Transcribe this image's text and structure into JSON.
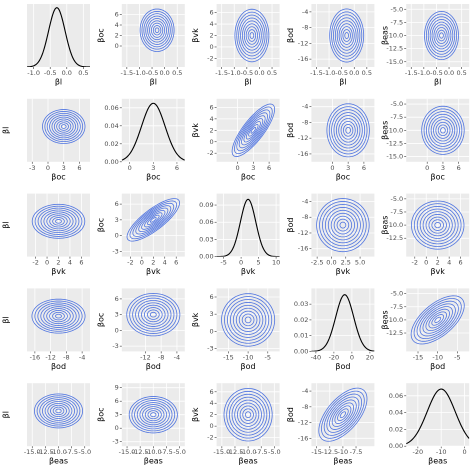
{
  "chart_data": [
    {
      "type": "density",
      "xlabel": "βl",
      "xlim": [
        -1.2,
        0.7
      ],
      "ylim": [
        0,
        1.7
      ],
      "xticks": [
        {
          "value": -1,
          "label": "-1.0"
        },
        {
          "value": -0.5,
          "label": "-0.5"
        },
        {
          "value": 0,
          "label": "0.0"
        },
        {
          "value": 0.5,
          "label": "0.5"
        }
      ],
      "mean": -0.3,
      "sd": 0.25,
      "peak": 1.6,
      "color": "#000000"
    },
    {
      "type": "contour",
      "xlabel": "βl",
      "ylabel": "βoc",
      "xlim": [
        -1.7,
        0.8
      ],
      "ylim": [
        -4,
        8
      ],
      "xticks": [
        {
          "value": -1.5,
          "label": "-1.5"
        },
        {
          "value": -1,
          "label": "-1.0"
        },
        {
          "value": -0.5,
          "label": "-0.5"
        },
        {
          "value": 0,
          "label": "0.0"
        },
        {
          "value": 0.5,
          "label": "0.5"
        }
      ],
      "yticks": [
        0,
        2,
        4,
        6
      ],
      "center": [
        -0.3,
        3
      ],
      "sd": [
        0.25,
        1.5
      ],
      "rho": 0,
      "levels": [
        0.3,
        0.6,
        0.9,
        1.2,
        1.5,
        1.8,
        2.1,
        2.4,
        2.7
      ],
      "color": "#4f74e0"
    },
    {
      "type": "contour",
      "xlabel": "βl",
      "ylabel": "βvk",
      "xlim": [
        -1.7,
        0.8
      ],
      "ylim": [
        -3.5,
        7.5
      ],
      "xticks": [
        {
          "value": -1.5,
          "label": "-1.5"
        },
        {
          "value": -1,
          "label": "-1.0"
        },
        {
          "value": -0.5,
          "label": "-0.5"
        },
        {
          "value": 0,
          "label": "0.0"
        },
        {
          "value": 0.5,
          "label": "0.5"
        }
      ],
      "yticks": [
        -2,
        0,
        2,
        4,
        6
      ],
      "center": [
        -0.3,
        2
      ],
      "sd": [
        0.25,
        1.7
      ],
      "rho": 0,
      "levels": [
        0.3,
        0.6,
        0.9,
        1.2,
        1.5,
        1.8,
        2.1,
        2.4,
        2.7
      ],
      "color": "#4f74e0"
    },
    {
      "type": "contour",
      "xlabel": "βl",
      "ylabel": "βod",
      "xlim": [
        -1.7,
        0.8
      ],
      "ylim": [
        -18,
        -2
      ],
      "xticks": [
        {
          "value": -1.5,
          "label": "-1.5"
        },
        {
          "value": -1,
          "label": "-1.0"
        },
        {
          "value": -0.5,
          "label": "-0.5"
        },
        {
          "value": 0,
          "label": "0.0"
        },
        {
          "value": 0.5,
          "label": "0.5"
        }
      ],
      "yticks": [
        -16,
        -12,
        -8,
        -4
      ],
      "center": [
        -0.3,
        -10
      ],
      "sd": [
        0.25,
        2.5
      ],
      "rho": 0,
      "levels": [
        0.3,
        0.6,
        0.9,
        1.2,
        1.5,
        1.8,
        2.1,
        2.4,
        2.7
      ],
      "color": "#4f74e0"
    },
    {
      "type": "contour",
      "xlabel": "βl",
      "ylabel": "βeas",
      "xlim": [
        -1.7,
        0.8
      ],
      "ylim": [
        -16,
        -4
      ],
      "xticks": [
        {
          "value": -1.5,
          "label": "-1.5"
        },
        {
          "value": -1,
          "label": "-1.0"
        },
        {
          "value": -0.5,
          "label": "-0.5"
        },
        {
          "value": 0,
          "label": "0.0"
        },
        {
          "value": 0.5,
          "label": "0.5"
        }
      ],
      "yticks": [
        {
          "value": -15,
          "label": "-15.0"
        },
        {
          "value": -12.5,
          "label": "-12.5"
        },
        {
          "value": -10,
          "label": "-10.0"
        },
        {
          "value": -7.5,
          "label": "-7.5"
        },
        {
          "value": -5,
          "label": "-5.0"
        }
      ],
      "center": [
        -0.3,
        -10
      ],
      "sd": [
        0.25,
        1.7
      ],
      "rho": 0,
      "levels": [
        0.3,
        0.6,
        0.9,
        1.2,
        1.5,
        1.8,
        2.1,
        2.4,
        2.7
      ],
      "color": "#4f74e0"
    },
    {
      "type": "contour",
      "xlabel": "βoc",
      "ylabel": "βl",
      "xlim": [
        -4,
        8
      ],
      "ylim": [
        -1.7,
        0.8
      ],
      "xticks": [
        -3,
        0,
        3,
        6
      ],
      "center": [
        3,
        -0.3
      ],
      "sd": [
        1.5,
        0.25
      ],
      "rho": 0,
      "levels": [
        0.3,
        0.6,
        0.9,
        1.2,
        1.5,
        1.8,
        2.1,
        2.4,
        2.7
      ],
      "color": "#4f74e0"
    },
    {
      "type": "density",
      "xlabel": "βoc",
      "xlim": [
        -1,
        7
      ],
      "ylim": [
        0,
        0.07
      ],
      "xticks": [
        0,
        3,
        6
      ],
      "yticks": [
        {
          "value": 0,
          "label": "0.00"
        },
        {
          "value": 0.02,
          "label": "0.02"
        },
        {
          "value": 0.04,
          "label": "0.04"
        },
        {
          "value": 0.06,
          "label": "0.06"
        }
      ],
      "mean": 3,
      "sd": 1.5,
      "peak": 0.065,
      "color": "#000000"
    },
    {
      "type": "contour",
      "xlabel": "βoc",
      "ylabel": "βvk",
      "xlim": [
        -4,
        8
      ],
      "ylim": [
        -3.5,
        7.5
      ],
      "xticks": [
        0,
        3,
        6
      ],
      "yticks": [
        -2,
        0,
        2,
        4,
        6
      ],
      "center": [
        3,
        2
      ],
      "sd": [
        1.5,
        1.7
      ],
      "rho": 0.8,
      "levels": [
        0.3,
        0.6,
        0.9,
        1.2,
        1.5,
        1.8,
        2.1,
        2.4,
        2.7
      ],
      "color": "#4f74e0"
    },
    {
      "type": "contour",
      "xlabel": "βoc",
      "ylabel": "βod",
      "xlim": [
        -4,
        8
      ],
      "ylim": [
        -18,
        -2
      ],
      "xticks": [
        0,
        3,
        6
      ],
      "yticks": [
        -16,
        -12,
        -8,
        -4
      ],
      "center": [
        3,
        -10
      ],
      "sd": [
        1.5,
        2.5
      ],
      "rho": 0,
      "levels": [
        0.3,
        0.6,
        0.9,
        1.2,
        1.5,
        1.8,
        2.1,
        2.4,
        2.7
      ],
      "color": "#4f74e0"
    },
    {
      "type": "contour",
      "xlabel": "βoc",
      "ylabel": "βeas",
      "xlim": [
        -4,
        8
      ],
      "ylim": [
        -16,
        -4
      ],
      "xticks": [
        0,
        3,
        6
      ],
      "yticks": [
        {
          "value": -15,
          "label": "-15.0"
        },
        {
          "value": -12.5,
          "label": "-12.5"
        },
        {
          "value": -10,
          "label": "-10.0"
        },
        {
          "value": -7.5,
          "label": "-7.5"
        },
        {
          "value": -5,
          "label": "-5.0"
        }
      ],
      "center": [
        3,
        -10
      ],
      "sd": [
        1.5,
        1.7
      ],
      "rho": 0,
      "levels": [
        0.3,
        0.6,
        0.9,
        1.2,
        1.5,
        1.8,
        2.1,
        2.4,
        2.7
      ],
      "color": "#4f74e0"
    },
    {
      "type": "contour",
      "xlabel": "βvk",
      "ylabel": "βl",
      "xlim": [
        -3.5,
        7.5
      ],
      "ylim": [
        -1.7,
        0.8
      ],
      "xticks": [
        -2,
        0,
        2,
        4,
        6
      ],
      "center": [
        2,
        -0.3
      ],
      "sd": [
        1.7,
        0.25
      ],
      "rho": 0,
      "levels": [
        0.3,
        0.6,
        0.9,
        1.2,
        1.5,
        1.8,
        2.1,
        2.4,
        2.7
      ],
      "color": "#4f74e0"
    },
    {
      "type": "contour",
      "xlabel": "βvk",
      "ylabel": "βoc",
      "xlim": [
        -3.5,
        7.5
      ],
      "ylim": [
        -4,
        8
      ],
      "xticks": [
        -2,
        0,
        2,
        4,
        6
      ],
      "yticks": [
        -3,
        0,
        3,
        6
      ],
      "center": [
        2,
        3
      ],
      "sd": [
        1.7,
        1.5
      ],
      "rho": 0.8,
      "levels": [
        0.3,
        0.6,
        0.9,
        1.2,
        1.5,
        1.8,
        2.1,
        2.4,
        2.7
      ],
      "color": "#4f74e0"
    },
    {
      "type": "density",
      "xlabel": "βvk",
      "xlim": [
        -7,
        11
      ],
      "ylim": [
        0,
        0.11
      ],
      "xticks": [
        -5,
        0,
        5,
        10
      ],
      "yticks": [
        {
          "value": 0,
          "label": "0.00"
        },
        {
          "value": 0.03,
          "label": "0.03"
        },
        {
          "value": 0.06,
          "label": "0.06"
        },
        {
          "value": 0.09,
          "label": "0.09"
        }
      ],
      "mean": 2,
      "sd": 2.2,
      "peak": 0.1,
      "color": "#000000"
    },
    {
      "type": "contour",
      "xlabel": "βvk",
      "ylabel": "βod",
      "xlim": [
        -3.5,
        7.5
      ],
      "ylim": [
        -18,
        -2
      ],
      "xticks": [
        {
          "value": -2.5,
          "label": "-2.5"
        },
        {
          "value": 0,
          "label": "0.0"
        },
        {
          "value": 2.5,
          "label": "2.5"
        },
        {
          "value": 5,
          "label": "5.0"
        }
      ],
      "yticks": [
        -16,
        -12,
        -8,
        -4
      ],
      "center": [
        2,
        -10
      ],
      "sd": [
        1.7,
        2.5
      ],
      "rho": 0,
      "levels": [
        0.3,
        0.6,
        0.9,
        1.2,
        1.5,
        1.8,
        2.1,
        2.4,
        2.7
      ],
      "color": "#4f74e0"
    },
    {
      "type": "contour",
      "xlabel": "βvk",
      "ylabel": "βeas",
      "xlim": [
        -3.5,
        7.5
      ],
      "ylim": [
        -16,
        -4
      ],
      "xticks": [
        -2,
        0,
        2,
        4,
        6
      ],
      "yticks": [
        {
          "value": -12.5,
          "label": "-12.5"
        },
        {
          "value": -10,
          "label": "-10.0"
        },
        {
          "value": -7.5,
          "label": "-7.5"
        },
        {
          "value": -5,
          "label": "-5.0"
        }
      ],
      "center": [
        2,
        -10
      ],
      "sd": [
        1.7,
        1.7
      ],
      "rho": 0,
      "levels": [
        0.3,
        0.6,
        0.9,
        1.2,
        1.5,
        1.8,
        2.1,
        2.4,
        2.7
      ],
      "color": "#4f74e0"
    },
    {
      "type": "contour",
      "xlabel": "βod",
      "ylabel": "βl",
      "xlim": [
        -18,
        -2
      ],
      "ylim": [
        -1.7,
        0.8
      ],
      "xticks": [
        -16,
        -12,
        -8,
        -4
      ],
      "center": [
        -10,
        -0.3
      ],
      "sd": [
        2.5,
        0.25
      ],
      "rho": 0,
      "levels": [
        0.3,
        0.6,
        0.9,
        1.2,
        1.5,
        1.8,
        2.1,
        2.4,
        2.7
      ],
      "color": "#4f74e0"
    },
    {
      "type": "contour",
      "xlabel": "βod",
      "ylabel": "βoc",
      "xlim": [
        -18,
        -2
      ],
      "ylim": [
        -4,
        8
      ],
      "xticks": [
        -12,
        -8,
        -4
      ],
      "yticks": [
        -3,
        0,
        3,
        6
      ],
      "center": [
        -10,
        3
      ],
      "sd": [
        2.5,
        1.5
      ],
      "rho": 0,
      "levels": [
        0.3,
        0.6,
        0.9,
        1.2,
        1.5,
        1.8,
        2.1,
        2.4,
        2.7
      ],
      "color": "#4f74e0"
    },
    {
      "type": "contour",
      "xlabel": "βod",
      "ylabel": "βvk",
      "xlim": [
        -18,
        -2
      ],
      "ylim": [
        -3.5,
        7.5
      ],
      "xticks": [
        -15,
        -10,
        -5
      ],
      "yticks": [
        -3,
        0,
        3,
        6
      ],
      "center": [
        -10,
        2
      ],
      "sd": [
        2.5,
        1.7
      ],
      "rho": 0,
      "levels": [
        0.3,
        0.6,
        0.9,
        1.2,
        1.5,
        1.8,
        2.1,
        2.4,
        2.7
      ],
      "color": "#4f74e0"
    },
    {
      "type": "density",
      "xlabel": "βod",
      "xlim": [
        -45,
        25
      ],
      "ylim": [
        0,
        0.04
      ],
      "xticks": [
        -40,
        -20,
        0,
        20
      ],
      "yticks": [
        {
          "value": 0,
          "label": "0.00"
        },
        {
          "value": 0.01,
          "label": "0.01"
        },
        {
          "value": 0.02,
          "label": "0.02"
        },
        {
          "value": 0.03,
          "label": "0.03"
        }
      ],
      "mean": -8,
      "sd": 10,
      "peak": 0.036,
      "color": "#000000"
    },
    {
      "type": "contour",
      "xlabel": "βod",
      "ylabel": "βeas",
      "xlim": [
        -18,
        -2
      ],
      "ylim": [
        -16,
        -4
      ],
      "xticks": [
        -15,
        -10,
        -5
      ],
      "yticks": [
        {
          "value": -12.5,
          "label": "-12.5"
        },
        {
          "value": -10,
          "label": "-10.0"
        },
        {
          "value": -7.5,
          "label": "-7.5"
        },
        {
          "value": -5,
          "label": "-5.0"
        }
      ],
      "center": [
        -10,
        -10
      ],
      "sd": [
        2.5,
        1.7
      ],
      "rho": 0.6,
      "levels": [
        0.3,
        0.6,
        0.9,
        1.2,
        1.5,
        1.8,
        2.1,
        2.4,
        2.7
      ],
      "color": "#4f74e0"
    },
    {
      "type": "contour",
      "xlabel": "βeas",
      "ylabel": "βl",
      "xlim": [
        -16,
        -4
      ],
      "ylim": [
        -1.7,
        0.8
      ],
      "xticks": [
        {
          "value": -15,
          "label": "-15.0"
        },
        {
          "value": -12.5,
          "label": "-12.5"
        },
        {
          "value": -10,
          "label": "-10.0"
        },
        {
          "value": -7.5,
          "label": "-7.5"
        },
        {
          "value": -5,
          "label": "-5.0"
        }
      ],
      "center": [
        -10,
        -0.3
      ],
      "sd": [
        1.7,
        0.25
      ],
      "rho": 0,
      "levels": [
        0.3,
        0.6,
        0.9,
        1.2,
        1.5,
        1.8,
        2.1,
        2.4,
        2.7
      ],
      "color": "#4f74e0"
    },
    {
      "type": "contour",
      "xlabel": "βeas",
      "ylabel": "βoc",
      "xlim": [
        -16,
        -4
      ],
      "ylim": [
        -4,
        10
      ],
      "xticks": [
        {
          "value": -15,
          "label": "-15.0"
        },
        {
          "value": -12.5,
          "label": "-12.5"
        },
        {
          "value": -10,
          "label": "-10.0"
        },
        {
          "value": -7.5,
          "label": "-7.5"
        },
        {
          "value": -5,
          "label": "-5.0"
        }
      ],
      "yticks": [
        -3,
        0,
        3,
        6,
        9
      ],
      "center": [
        -10,
        3
      ],
      "sd": [
        1.7,
        1.5
      ],
      "rho": 0,
      "levels": [
        0.3,
        0.6,
        0.9,
        1.2,
        1.5,
        1.8,
        2.1,
        2.4,
        2.7
      ],
      "color": "#4f74e0"
    },
    {
      "type": "contour",
      "xlabel": "βeas",
      "ylabel": "βvk",
      "xlim": [
        -16,
        -4
      ],
      "ylim": [
        -3.5,
        7.5
      ],
      "xticks": [
        {
          "value": -15,
          "label": "-15.0"
        },
        {
          "value": -12.5,
          "label": "-12.5"
        },
        {
          "value": -10,
          "label": "-10.0"
        },
        {
          "value": -7.5,
          "label": "-7.5"
        },
        {
          "value": -5,
          "label": "-5.0"
        }
      ],
      "yticks": [
        -2,
        0,
        2,
        4,
        6
      ],
      "center": [
        -10,
        2
      ],
      "sd": [
        1.7,
        1.7
      ],
      "rho": 0,
      "levels": [
        0.3,
        0.6,
        0.9,
        1.2,
        1.5,
        1.8,
        2.1,
        2.4,
        2.7
      ],
      "color": "#4f74e0"
    },
    {
      "type": "contour",
      "xlabel": "βeas",
      "ylabel": "βod",
      "xlim": [
        -16,
        -4
      ],
      "ylim": [
        -18,
        -2
      ],
      "xticks": [
        -15,
        {
          "value": -12.5,
          "label": "-12.5"
        },
        -10,
        {
          "value": -7.5,
          "label": "-7.5"
        }
      ],
      "yticks": [
        -16,
        -12,
        -8,
        -4
      ],
      "center": [
        -10,
        -10
      ],
      "sd": [
        1.7,
        2.5
      ],
      "rho": 0.6,
      "levels": [
        0.3,
        0.6,
        0.9,
        1.2,
        1.5,
        1.8,
        2.1,
        2.4,
        2.7
      ],
      "color": "#4f74e0"
    },
    {
      "type": "density",
      "xlabel": "βeas",
      "xlim": [
        -25,
        2
      ],
      "ylim": [
        0,
        0.075
      ],
      "xticks": [
        -20,
        -10,
        0
      ],
      "yticks": [
        {
          "value": 0,
          "label": "0.00"
        },
        {
          "value": 0.02,
          "label": "0.02"
        },
        {
          "value": 0.04,
          "label": "0.04"
        },
        {
          "value": 0.06,
          "label": "0.06"
        }
      ],
      "mean": -10,
      "sd": 6,
      "peak": 0.068,
      "color": "#000000"
    }
  ]
}
